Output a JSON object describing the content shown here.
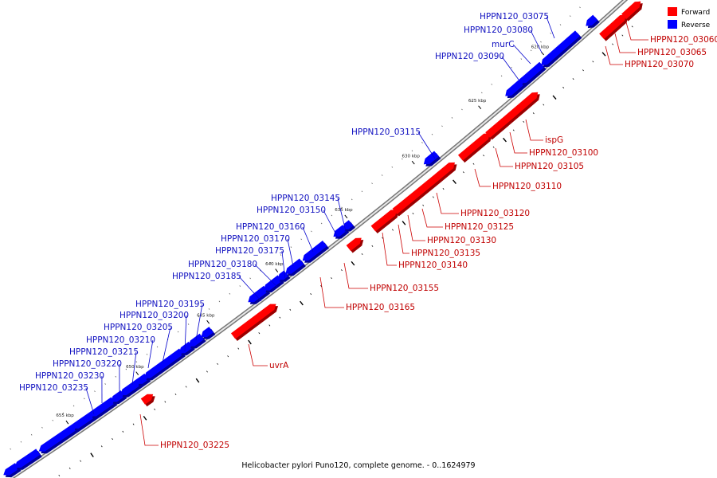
{
  "legend": {
    "forward": {
      "label": "Forward",
      "color": "#ff0000"
    },
    "reverse": {
      "label": "Reverse",
      "color": "#0000ff"
    }
  },
  "caption": "Helicobacter pylori Puno120, complete genome. - 0..1624979",
  "ticks": [
    "620 kbp",
    "625 kbp",
    "630 kbp",
    "635 kbp",
    "640 kbp",
    "645 kbp",
    "650 kbp",
    "655 kbp"
  ],
  "reverse_labels": [
    "HPPN120_03075",
    "HPPN120_03080",
    "murC",
    "HPPN120_03090",
    "HPPN120_03115",
    "HPPN120_03145",
    "HPPN120_03150",
    "HPPN120_03160",
    "HPPN120_03170",
    "HPPN120_03175",
    "HPPN120_03180",
    "HPPN120_03185",
    "HPPN120_03195",
    "HPPN120_03200",
    "HPPN120_03205",
    "HPPN120_03210",
    "HPPN120_03215",
    "HPPN120_03220",
    "HPPN120_03230",
    "HPPN120_03235"
  ],
  "forward_labels": [
    "HPPN120_03060",
    "HPPN120_03065",
    "HPPN120_03070",
    "ispG",
    "HPPN120_03100",
    "HPPN120_03105",
    "HPPN120_03110",
    "HPPN120_03120",
    "HPPN120_03125",
    "HPPN120_03130",
    "HPPN120_03135",
    "HPPN120_03140",
    "HPPN120_03155",
    "HPPN120_03165",
    "uvrA",
    "HPPN120_03225"
  ]
}
